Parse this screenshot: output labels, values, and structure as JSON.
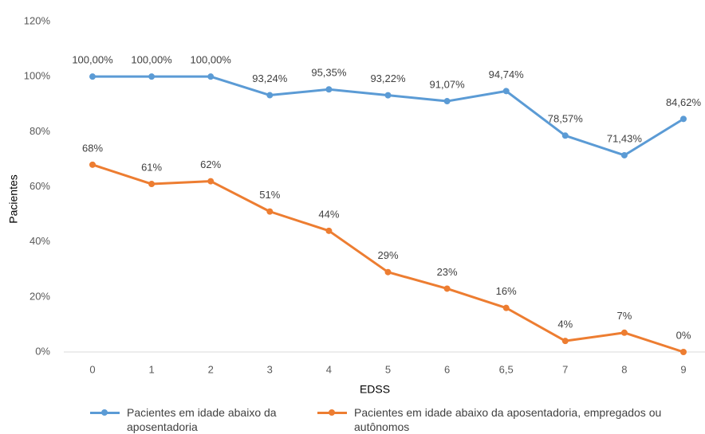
{
  "chart_data": {
    "type": "line",
    "x_label": "EDSS",
    "y_label": "Pacientes",
    "categories": [
      "0",
      "1",
      "2",
      "3",
      "4",
      "5",
      "6",
      "6,5",
      "7",
      "8",
      "9"
    ],
    "series": [
      {
        "name": "Pacientes em idade abaixo da aposentadoria",
        "color": "#5b9bd5",
        "values": [
          100,
          100,
          100,
          93.24,
          95.35,
          93.22,
          91.07,
          94.74,
          78.57,
          71.43,
          84.62
        ],
        "value_labels": [
          "100,00%",
          "100,00%",
          "100,00%",
          "93,24%",
          "95,35%",
          "93,22%",
          "91,07%",
          "94,74%",
          "78,57%",
          "71,43%",
          "84,62%"
        ]
      },
      {
        "name": "Pacientes em idade abaixo da aposentadoria, empregados ou autônomos",
        "color": "#ed7d31",
        "values": [
          68,
          61,
          62,
          51,
          44,
          29,
          23,
          16,
          4,
          7,
          0
        ],
        "value_labels": [
          "68%",
          "61%",
          "62%",
          "51%",
          "44%",
          "29%",
          "23%",
          "16%",
          "4%",
          "7%",
          "0%"
        ]
      }
    ],
    "ylim": [
      0,
      120
    ],
    "yticks": [
      {
        "value": 0,
        "label": "0%"
      },
      {
        "value": 20,
        "label": "20%"
      },
      {
        "value": 40,
        "label": "40%"
      },
      {
        "value": 60,
        "label": "60%"
      },
      {
        "value": 80,
        "label": "80%"
      },
      {
        "value": 100,
        "label": "100%"
      },
      {
        "value": 120,
        "label": "120%"
      }
    ],
    "grid": false,
    "legend": "bottom"
  }
}
